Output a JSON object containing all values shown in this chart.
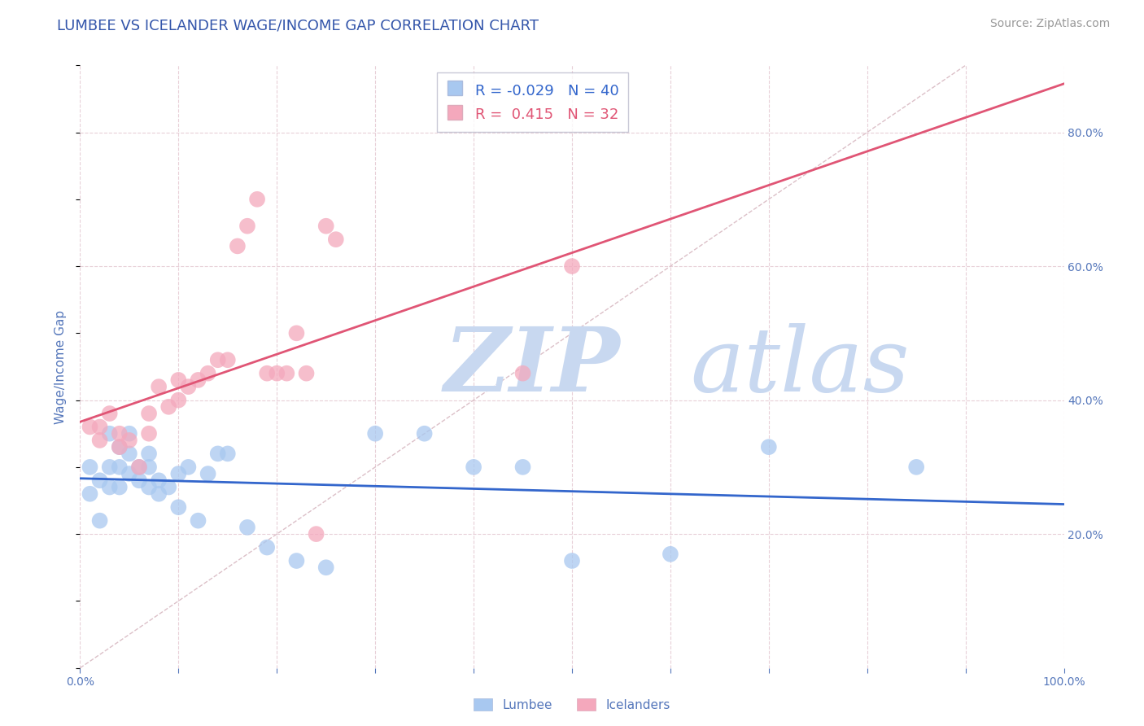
{
  "title": "LUMBEE VS ICELANDER WAGE/INCOME GAP CORRELATION CHART",
  "source": "Source: ZipAtlas.com",
  "ylabel": "Wage/Income Gap",
  "xlim": [
    0.0,
    1.0
  ],
  "ylim": [
    0.0,
    0.9
  ],
  "xticks": [
    0.0,
    0.1,
    0.2,
    0.3,
    0.4,
    0.5,
    0.6,
    0.7,
    0.8,
    0.9,
    1.0
  ],
  "ytick_positions": [
    0.2,
    0.4,
    0.6,
    0.8
  ],
  "ytick_labels": [
    "20.0%",
    "40.0%",
    "60.0%",
    "80.0%"
  ],
  "lumbee_color": "#a8c8f0",
  "icelander_color": "#f4a8bc",
  "lumbee_line_color": "#3366cc",
  "icelander_line_color": "#e05575",
  "diagonal_line_color": "#dcc0c8",
  "watermark_color": "#c8d8f0",
  "legend_r_lumbee": "-0.029",
  "legend_n_lumbee": "40",
  "legend_r_icelander": "0.415",
  "legend_n_icelander": "32",
  "lumbee_x": [
    0.01,
    0.01,
    0.02,
    0.02,
    0.03,
    0.03,
    0.03,
    0.04,
    0.04,
    0.04,
    0.05,
    0.05,
    0.05,
    0.06,
    0.06,
    0.07,
    0.07,
    0.07,
    0.08,
    0.08,
    0.09,
    0.1,
    0.1,
    0.11,
    0.12,
    0.13,
    0.14,
    0.15,
    0.17,
    0.19,
    0.22,
    0.25,
    0.3,
    0.35,
    0.4,
    0.45,
    0.5,
    0.6,
    0.7,
    0.85
  ],
  "lumbee_y": [
    0.3,
    0.26,
    0.28,
    0.22,
    0.3,
    0.27,
    0.35,
    0.3,
    0.33,
    0.27,
    0.32,
    0.29,
    0.35,
    0.3,
    0.28,
    0.32,
    0.27,
    0.3,
    0.28,
    0.26,
    0.27,
    0.24,
    0.29,
    0.3,
    0.22,
    0.29,
    0.32,
    0.32,
    0.21,
    0.18,
    0.16,
    0.15,
    0.35,
    0.35,
    0.3,
    0.3,
    0.16,
    0.17,
    0.33,
    0.3
  ],
  "icelander_x": [
    0.01,
    0.02,
    0.02,
    0.03,
    0.04,
    0.04,
    0.05,
    0.06,
    0.07,
    0.07,
    0.08,
    0.09,
    0.1,
    0.1,
    0.11,
    0.12,
    0.13,
    0.14,
    0.15,
    0.16,
    0.17,
    0.18,
    0.19,
    0.2,
    0.21,
    0.22,
    0.23,
    0.24,
    0.25,
    0.26,
    0.45,
    0.5
  ],
  "icelander_y": [
    0.36,
    0.36,
    0.34,
    0.38,
    0.33,
    0.35,
    0.34,
    0.3,
    0.38,
    0.35,
    0.42,
    0.39,
    0.43,
    0.4,
    0.42,
    0.43,
    0.44,
    0.46,
    0.46,
    0.63,
    0.66,
    0.7,
    0.44,
    0.44,
    0.44,
    0.5,
    0.44,
    0.2,
    0.66,
    0.64,
    0.44,
    0.6
  ],
  "background_color": "#ffffff",
  "grid_color": "#e8d0d8",
  "title_color": "#3355aa",
  "tick_color": "#5577bb"
}
